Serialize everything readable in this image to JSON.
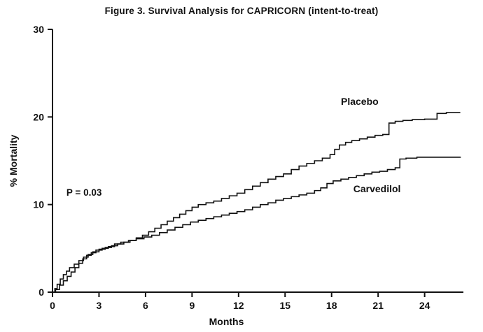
{
  "chart_data": {
    "type": "line",
    "subtype": "kaplan-meier-step",
    "title": "Figure 3. Survival Analysis for CAPRICORN (intent-to-treat)",
    "xlabel": "Months",
    "ylabel": "% Mortality",
    "xlim": [
      0,
      26.5
    ],
    "ylim": [
      0,
      30
    ],
    "xticks": [
      0,
      3,
      6,
      9,
      12,
      15,
      18,
      21,
      24
    ],
    "yticks": [
      0,
      10,
      20,
      30
    ],
    "grid": false,
    "legend_position": "inline-labels",
    "line_color": "#111111",
    "annotations": [
      {
        "text": "P = 0.03",
        "x": 0.9,
        "y": 11.0,
        "role": "p-value"
      },
      {
        "text": "Placebo",
        "x": 18.6,
        "y": 21.4,
        "role": "series-label"
      },
      {
        "text": "Carvedilol",
        "x": 19.4,
        "y": 11.4,
        "role": "series-label"
      }
    ],
    "series": [
      {
        "name": "Placebo",
        "final_value": 20.5,
        "points": [
          [
            0,
            0
          ],
          [
            0.15,
            0.4
          ],
          [
            0.3,
            0.9
          ],
          [
            0.5,
            1.5
          ],
          [
            0.7,
            2.0
          ],
          [
            0.9,
            2.4
          ],
          [
            1.1,
            2.8
          ],
          [
            1.4,
            3.2
          ],
          [
            1.7,
            3.6
          ],
          [
            2.0,
            4.0
          ],
          [
            2.3,
            4.3
          ],
          [
            2.6,
            4.6
          ],
          [
            3.0,
            4.9
          ],
          [
            3.4,
            5.1
          ],
          [
            3.8,
            5.3
          ],
          [
            4.2,
            5.5
          ],
          [
            4.6,
            5.7
          ],
          [
            5.0,
            5.9
          ],
          [
            5.4,
            6.2
          ],
          [
            5.8,
            6.5
          ],
          [
            6.2,
            6.9
          ],
          [
            6.6,
            7.3
          ],
          [
            7.0,
            7.7
          ],
          [
            7.4,
            8.1
          ],
          [
            7.8,
            8.5
          ],
          [
            8.2,
            8.9
          ],
          [
            8.6,
            9.3
          ],
          [
            9.0,
            9.7
          ],
          [
            9.4,
            10.0
          ],
          [
            9.9,
            10.2
          ],
          [
            10.4,
            10.4
          ],
          [
            10.9,
            10.7
          ],
          [
            11.4,
            11.0
          ],
          [
            11.9,
            11.3
          ],
          [
            12.4,
            11.7
          ],
          [
            12.9,
            12.1
          ],
          [
            13.4,
            12.5
          ],
          [
            13.9,
            12.9
          ],
          [
            14.4,
            13.2
          ],
          [
            14.9,
            13.5
          ],
          [
            15.4,
            14.0
          ],
          [
            15.9,
            14.4
          ],
          [
            16.4,
            14.7
          ],
          [
            16.9,
            15.0
          ],
          [
            17.4,
            15.3
          ],
          [
            17.9,
            15.7
          ],
          [
            18.2,
            16.3
          ],
          [
            18.5,
            16.8
          ],
          [
            18.9,
            17.1
          ],
          [
            19.3,
            17.3
          ],
          [
            19.8,
            17.5
          ],
          [
            20.3,
            17.7
          ],
          [
            20.8,
            17.9
          ],
          [
            21.3,
            18.0
          ],
          [
            21.7,
            19.3
          ],
          [
            22.1,
            19.5
          ],
          [
            22.6,
            19.6
          ],
          [
            23.2,
            19.7
          ],
          [
            24.0,
            19.75
          ],
          [
            24.8,
            20.4
          ],
          [
            25.4,
            20.5
          ],
          [
            26.3,
            20.5
          ]
        ]
      },
      {
        "name": "Carvedilol",
        "final_value": 15.5,
        "points": [
          [
            0,
            0
          ],
          [
            0.2,
            0.3
          ],
          [
            0.45,
            0.8
          ],
          [
            0.7,
            1.3
          ],
          [
            0.95,
            1.8
          ],
          [
            1.2,
            2.3
          ],
          [
            1.45,
            2.8
          ],
          [
            1.7,
            3.3
          ],
          [
            1.95,
            3.8
          ],
          [
            2.2,
            4.2
          ],
          [
            2.5,
            4.5
          ],
          [
            2.8,
            4.8
          ],
          [
            3.2,
            5.0
          ],
          [
            3.6,
            5.2
          ],
          [
            4.0,
            5.5
          ],
          [
            4.4,
            5.7
          ],
          [
            4.9,
            5.9
          ],
          [
            5.4,
            6.1
          ],
          [
            5.9,
            6.3
          ],
          [
            6.4,
            6.5
          ],
          [
            6.9,
            6.8
          ],
          [
            7.4,
            7.1
          ],
          [
            7.9,
            7.4
          ],
          [
            8.4,
            7.7
          ],
          [
            8.9,
            8.0
          ],
          [
            9.4,
            8.2
          ],
          [
            9.9,
            8.4
          ],
          [
            10.4,
            8.6
          ],
          [
            10.9,
            8.8
          ],
          [
            11.4,
            9.0
          ],
          [
            11.9,
            9.2
          ],
          [
            12.4,
            9.4
          ],
          [
            12.9,
            9.7
          ],
          [
            13.4,
            10.0
          ],
          [
            13.9,
            10.2
          ],
          [
            14.4,
            10.5
          ],
          [
            14.9,
            10.7
          ],
          [
            15.4,
            10.9
          ],
          [
            15.9,
            11.1
          ],
          [
            16.4,
            11.3
          ],
          [
            16.9,
            11.6
          ],
          [
            17.3,
            11.9
          ],
          [
            17.7,
            12.4
          ],
          [
            18.1,
            12.7
          ],
          [
            18.6,
            12.9
          ],
          [
            19.1,
            13.1
          ],
          [
            19.6,
            13.3
          ],
          [
            20.1,
            13.5
          ],
          [
            20.6,
            13.7
          ],
          [
            21.1,
            13.8
          ],
          [
            21.6,
            14.0
          ],
          [
            22.1,
            14.2
          ],
          [
            22.4,
            15.2
          ],
          [
            22.8,
            15.3
          ],
          [
            23.5,
            15.4
          ],
          [
            24.5,
            15.4
          ],
          [
            26.3,
            15.45
          ]
        ]
      }
    ]
  }
}
